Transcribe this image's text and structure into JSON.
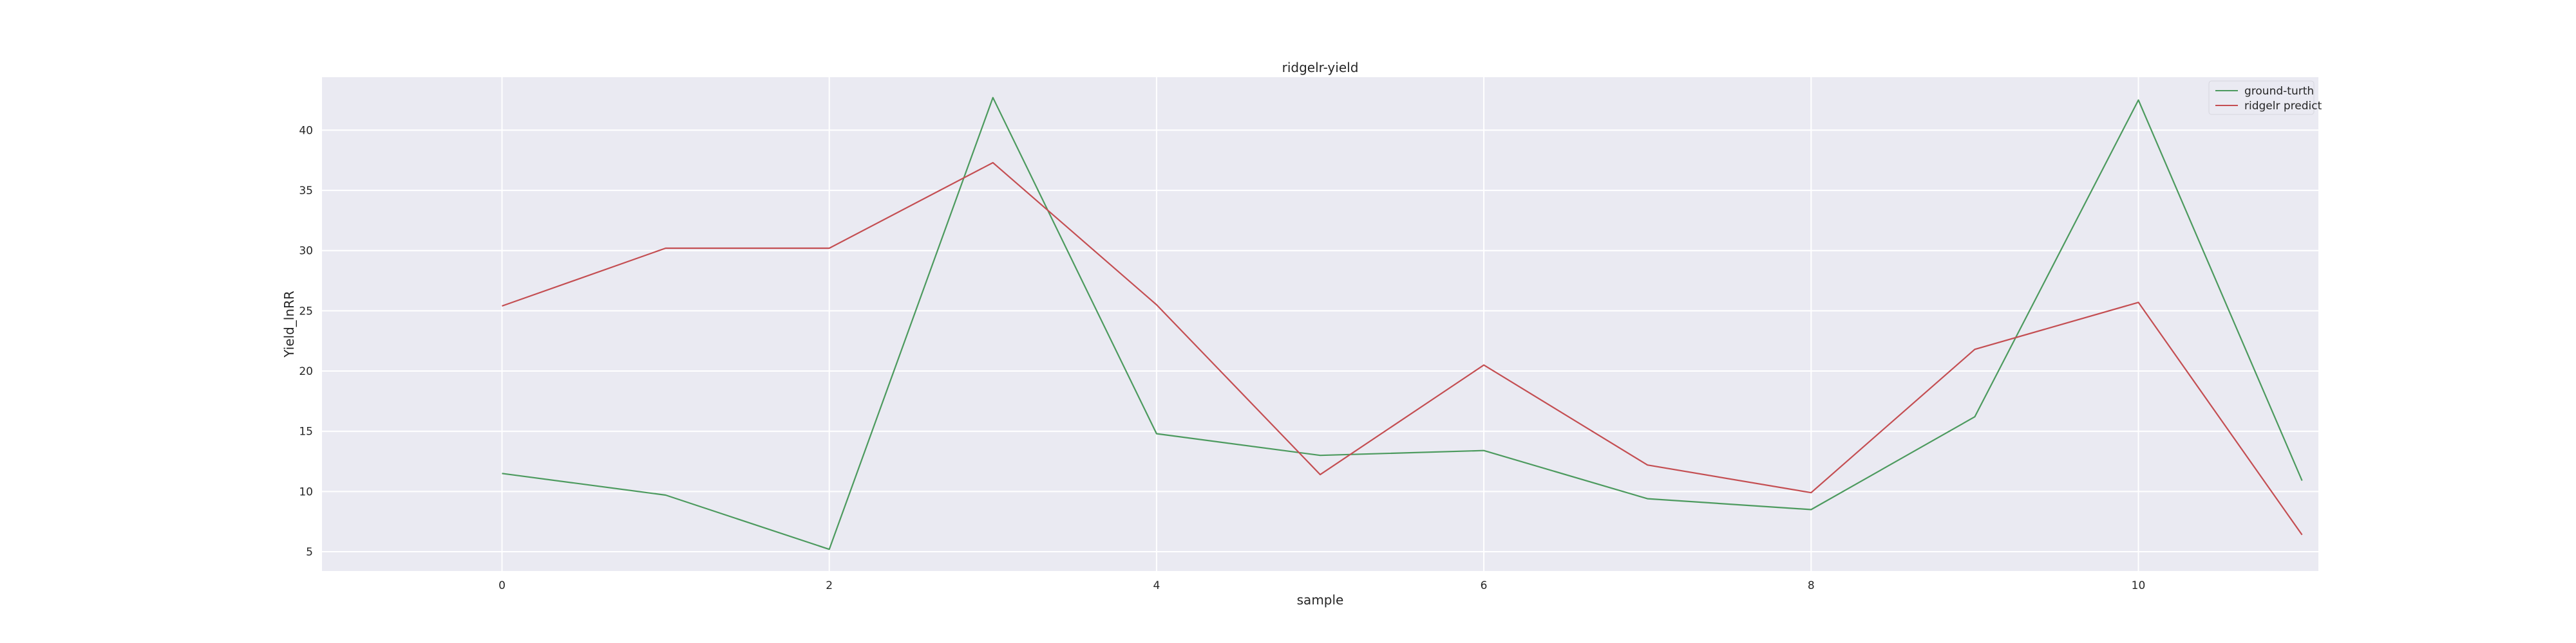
{
  "chart_data": {
    "type": "line",
    "title": "ridgelr-yield",
    "xlabel": "sample",
    "ylabel": "Yield_lnRR",
    "x": [
      0,
      1,
      2,
      3,
      4,
      5,
      6,
      7,
      8,
      9,
      10,
      11
    ],
    "xlim": [
      -1.1,
      11.1
    ],
    "ylim": [
      3.4,
      44.4
    ],
    "xticks": [
      0,
      2,
      4,
      6,
      8,
      10
    ],
    "yticks": [
      5,
      10,
      15,
      20,
      25,
      30,
      35,
      40
    ],
    "grid": true,
    "legend_position": "top-right",
    "background": "#eaeaf2",
    "series": [
      {
        "name": "ground-turth",
        "color": "#4c9a5e",
        "values": [
          11.5,
          9.7,
          5.2,
          42.7,
          14.8,
          13.0,
          13.4,
          9.4,
          8.5,
          16.2,
          42.5,
          10.9
        ]
      },
      {
        "name": "ridgelr predict",
        "color": "#c44e52",
        "values": [
          25.4,
          30.2,
          30.2,
          37.3,
          25.5,
          11.4,
          20.5,
          12.2,
          9.9,
          21.8,
          25.7,
          6.4
        ]
      }
    ]
  }
}
